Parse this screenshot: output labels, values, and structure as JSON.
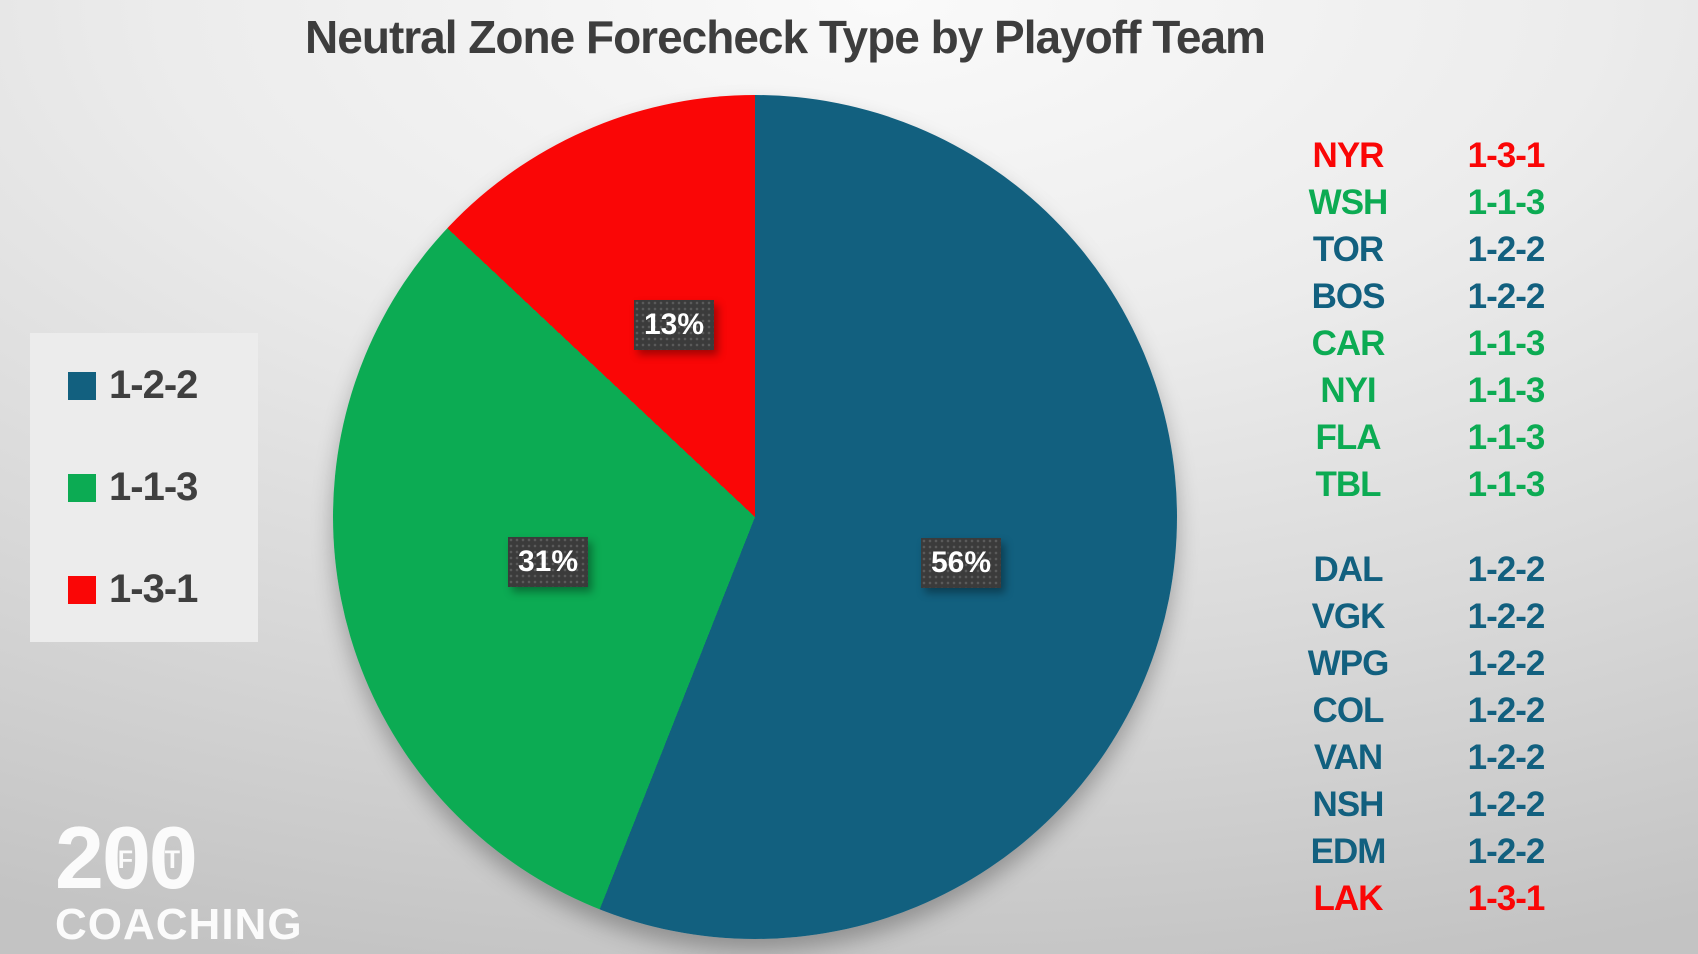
{
  "title": "Neutral Zone Forecheck Type by Playoff Team",
  "colors": {
    "blue": "#12607f",
    "green": "#0cab53",
    "red": "#fa0606",
    "title_text": "#3d3d3d",
    "label_box": "#3b3b3b",
    "label_text": "#ffffff",
    "legend_panel": "#ececec",
    "logo_text": "#ffffff"
  },
  "chart_data": {
    "type": "pie",
    "title": "Neutral Zone Forecheck Type by Playoff Team",
    "start_angle_deg": 0,
    "direction": "clockwise",
    "legend_position": "left",
    "slices": [
      {
        "label": "1-2-2",
        "value_pct": 56,
        "data_label": "56%",
        "color_key": "blue"
      },
      {
        "label": "1-1-3",
        "value_pct": 31,
        "data_label": "31%",
        "color_key": "green"
      },
      {
        "label": "1-3-1",
        "value_pct": 13,
        "data_label": "13%",
        "color_key": "red"
      }
    ]
  },
  "legend": {
    "items": [
      {
        "label": "1-2-2",
        "color_key": "blue"
      },
      {
        "label": "1-1-3",
        "color_key": "green"
      },
      {
        "label": "1-3-1",
        "color_key": "red"
      }
    ]
  },
  "team_table": {
    "groups": [
      {
        "rows": [
          {
            "abbr": "NYR",
            "forecheck": "1-3-1",
            "color_key": "red"
          },
          {
            "abbr": "WSH",
            "forecheck": "1-1-3",
            "color_key": "green"
          },
          {
            "abbr": "TOR",
            "forecheck": "1-2-2",
            "color_key": "blue"
          },
          {
            "abbr": "BOS",
            "forecheck": "1-2-2",
            "color_key": "blue"
          },
          {
            "abbr": "CAR",
            "forecheck": "1-1-3",
            "color_key": "green"
          },
          {
            "abbr": "NYI",
            "forecheck": "1-1-3",
            "color_key": "green"
          },
          {
            "abbr": "FLA",
            "forecheck": "1-1-3",
            "color_key": "green"
          },
          {
            "abbr": "TBL",
            "forecheck": "1-1-3",
            "color_key": "green"
          }
        ]
      },
      {
        "rows": [
          {
            "abbr": "DAL",
            "forecheck": "1-2-2",
            "color_key": "blue"
          },
          {
            "abbr": "VGK",
            "forecheck": "1-2-2",
            "color_key": "blue"
          },
          {
            "abbr": "WPG",
            "forecheck": "1-2-2",
            "color_key": "blue"
          },
          {
            "abbr": "COL",
            "forecheck": "1-2-2",
            "color_key": "blue"
          },
          {
            "abbr": "VAN",
            "forecheck": "1-2-2",
            "color_key": "blue"
          },
          {
            "abbr": "NSH",
            "forecheck": "1-2-2",
            "color_key": "blue"
          },
          {
            "abbr": "EDM",
            "forecheck": "1-2-2",
            "color_key": "blue"
          },
          {
            "abbr": "LAK",
            "forecheck": "1-3-1",
            "color_key": "red"
          }
        ]
      }
    ]
  },
  "logo": {
    "lead_digit": "2",
    "zeros": [
      {
        "digit": "0",
        "letter": "F"
      },
      {
        "digit": "0",
        "letter": "T"
      }
    ],
    "subtitle": "COACHING"
  }
}
